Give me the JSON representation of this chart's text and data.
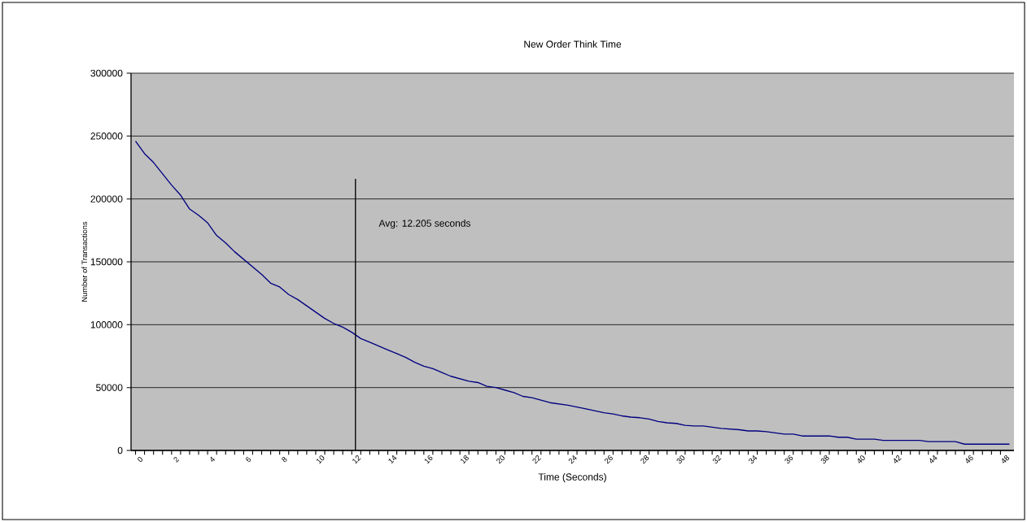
{
  "chart_data": {
    "type": "line",
    "title": "New Order Think Time",
    "xlabel": "Time (Seconds)",
    "ylabel": "Number of Transactions",
    "x": [
      0,
      0.5,
      1,
      1.5,
      2,
      2.5,
      3,
      3.5,
      4,
      4.5,
      5,
      5.5,
      6,
      6.5,
      7,
      7.5,
      8,
      8.5,
      9,
      9.5,
      10,
      10.5,
      11,
      11.5,
      12,
      12.5,
      13,
      13.5,
      14,
      14.5,
      15,
      15.5,
      16,
      16.5,
      17,
      17.5,
      18,
      18.5,
      19,
      19.5,
      20,
      20.5,
      21,
      21.5,
      22,
      22.5,
      23,
      23.5,
      24,
      24.5,
      25,
      25.5,
      26,
      26.5,
      27,
      27.5,
      28,
      28.5,
      29,
      29.5,
      30,
      30.5,
      31,
      31.5,
      32,
      32.5,
      33,
      33.5,
      34,
      34.5,
      35,
      35.5,
      36,
      36.5,
      37,
      37.5,
      38,
      38.5,
      39,
      39.5,
      40,
      40.5,
      41,
      41.5,
      42,
      42.5,
      43,
      43.5,
      44,
      44.5,
      45,
      45.5,
      46,
      46.5,
      47,
      47.5,
      48,
      48.5
    ],
    "series": [
      {
        "color": "#000080",
        "values": [
          246000,
          236000,
          229000,
          220000,
          211000,
          203000,
          192000,
          187000,
          181000,
          171000,
          165000,
          158000,
          152000,
          146000,
          140000,
          133000,
          130000,
          124000,
          120000,
          115000,
          110000,
          105000,
          101000,
          98000,
          94000,
          89000,
          86000,
          83000,
          80000,
          77000,
          74000,
          70000,
          67000,
          65000,
          62000,
          59000,
          57000,
          55000,
          54000,
          51000,
          50000,
          48000,
          46000,
          43000,
          42000,
          40000,
          38000,
          37000,
          36000,
          34500,
          33000,
          31500,
          30000,
          29000,
          27500,
          26500,
          26000,
          25000,
          23000,
          22000,
          21500,
          20000,
          19500,
          19500,
          18500,
          17500,
          17000,
          16500,
          15500,
          15500,
          15000,
          14000,
          13000,
          13000,
          11500,
          11500,
          11500,
          11500,
          10500,
          10500,
          9000,
          9000,
          9000,
          8000,
          8000,
          8000,
          8000,
          8000,
          7000,
          7000,
          7000,
          7000,
          5000,
          5000,
          5000,
          5000,
          5000,
          5000
        ]
      }
    ],
    "xlim": [
      -0.25,
      48.75
    ],
    "xticks": [
      0,
      2,
      4,
      6,
      8,
      10,
      12,
      14,
      16,
      18,
      20,
      22,
      24,
      26,
      28,
      30,
      32,
      34,
      36,
      38,
      40,
      42,
      44,
      46,
      48
    ],
    "ylim": [
      0,
      300000
    ],
    "yticks": [
      0,
      50000,
      100000,
      150000,
      200000,
      250000,
      300000
    ],
    "grid": "y",
    "legend": false,
    "marker": "none",
    "line_style": "solid",
    "ref_lines": [
      {
        "axis": "x",
        "value": 12.205,
        "label": "Avg: 12.205 seconds",
        "color": "#000000"
      }
    ]
  }
}
